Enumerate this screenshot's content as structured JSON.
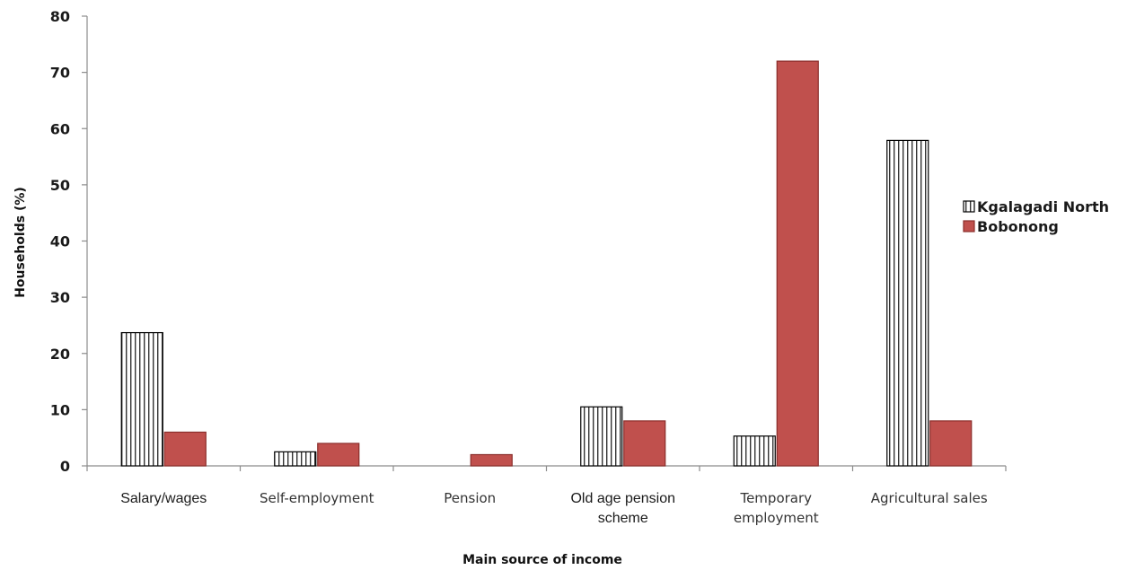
{
  "chart_data": {
    "type": "bar",
    "title": "",
    "xlabel": "Main source of income",
    "ylabel": "Households (%)",
    "ylim": [
      0,
      80
    ],
    "yticks": [
      0,
      10,
      20,
      30,
      40,
      50,
      60,
      70,
      80
    ],
    "categories": [
      [
        "Salary/wages"
      ],
      [
        "Self-employment"
      ],
      [
        "Pension"
      ],
      [
        "Old age pension",
        "scheme"
      ],
      [
        "Temporary",
        "employment"
      ],
      [
        "Agricultural sales"
      ]
    ],
    "series": [
      {
        "name": "Kgalagadi North",
        "fill": "vertical-stripes",
        "stroke": "#000000",
        "values": [
          23.7,
          2.5,
          0,
          10.5,
          5.3,
          57.9
        ]
      },
      {
        "name": "Bobonong",
        "fill": "#c0504d",
        "stroke": "#8b2e2c",
        "values": [
          6,
          4,
          2,
          8,
          72,
          8
        ]
      }
    ],
    "legend_position": "right",
    "grid": false
  }
}
